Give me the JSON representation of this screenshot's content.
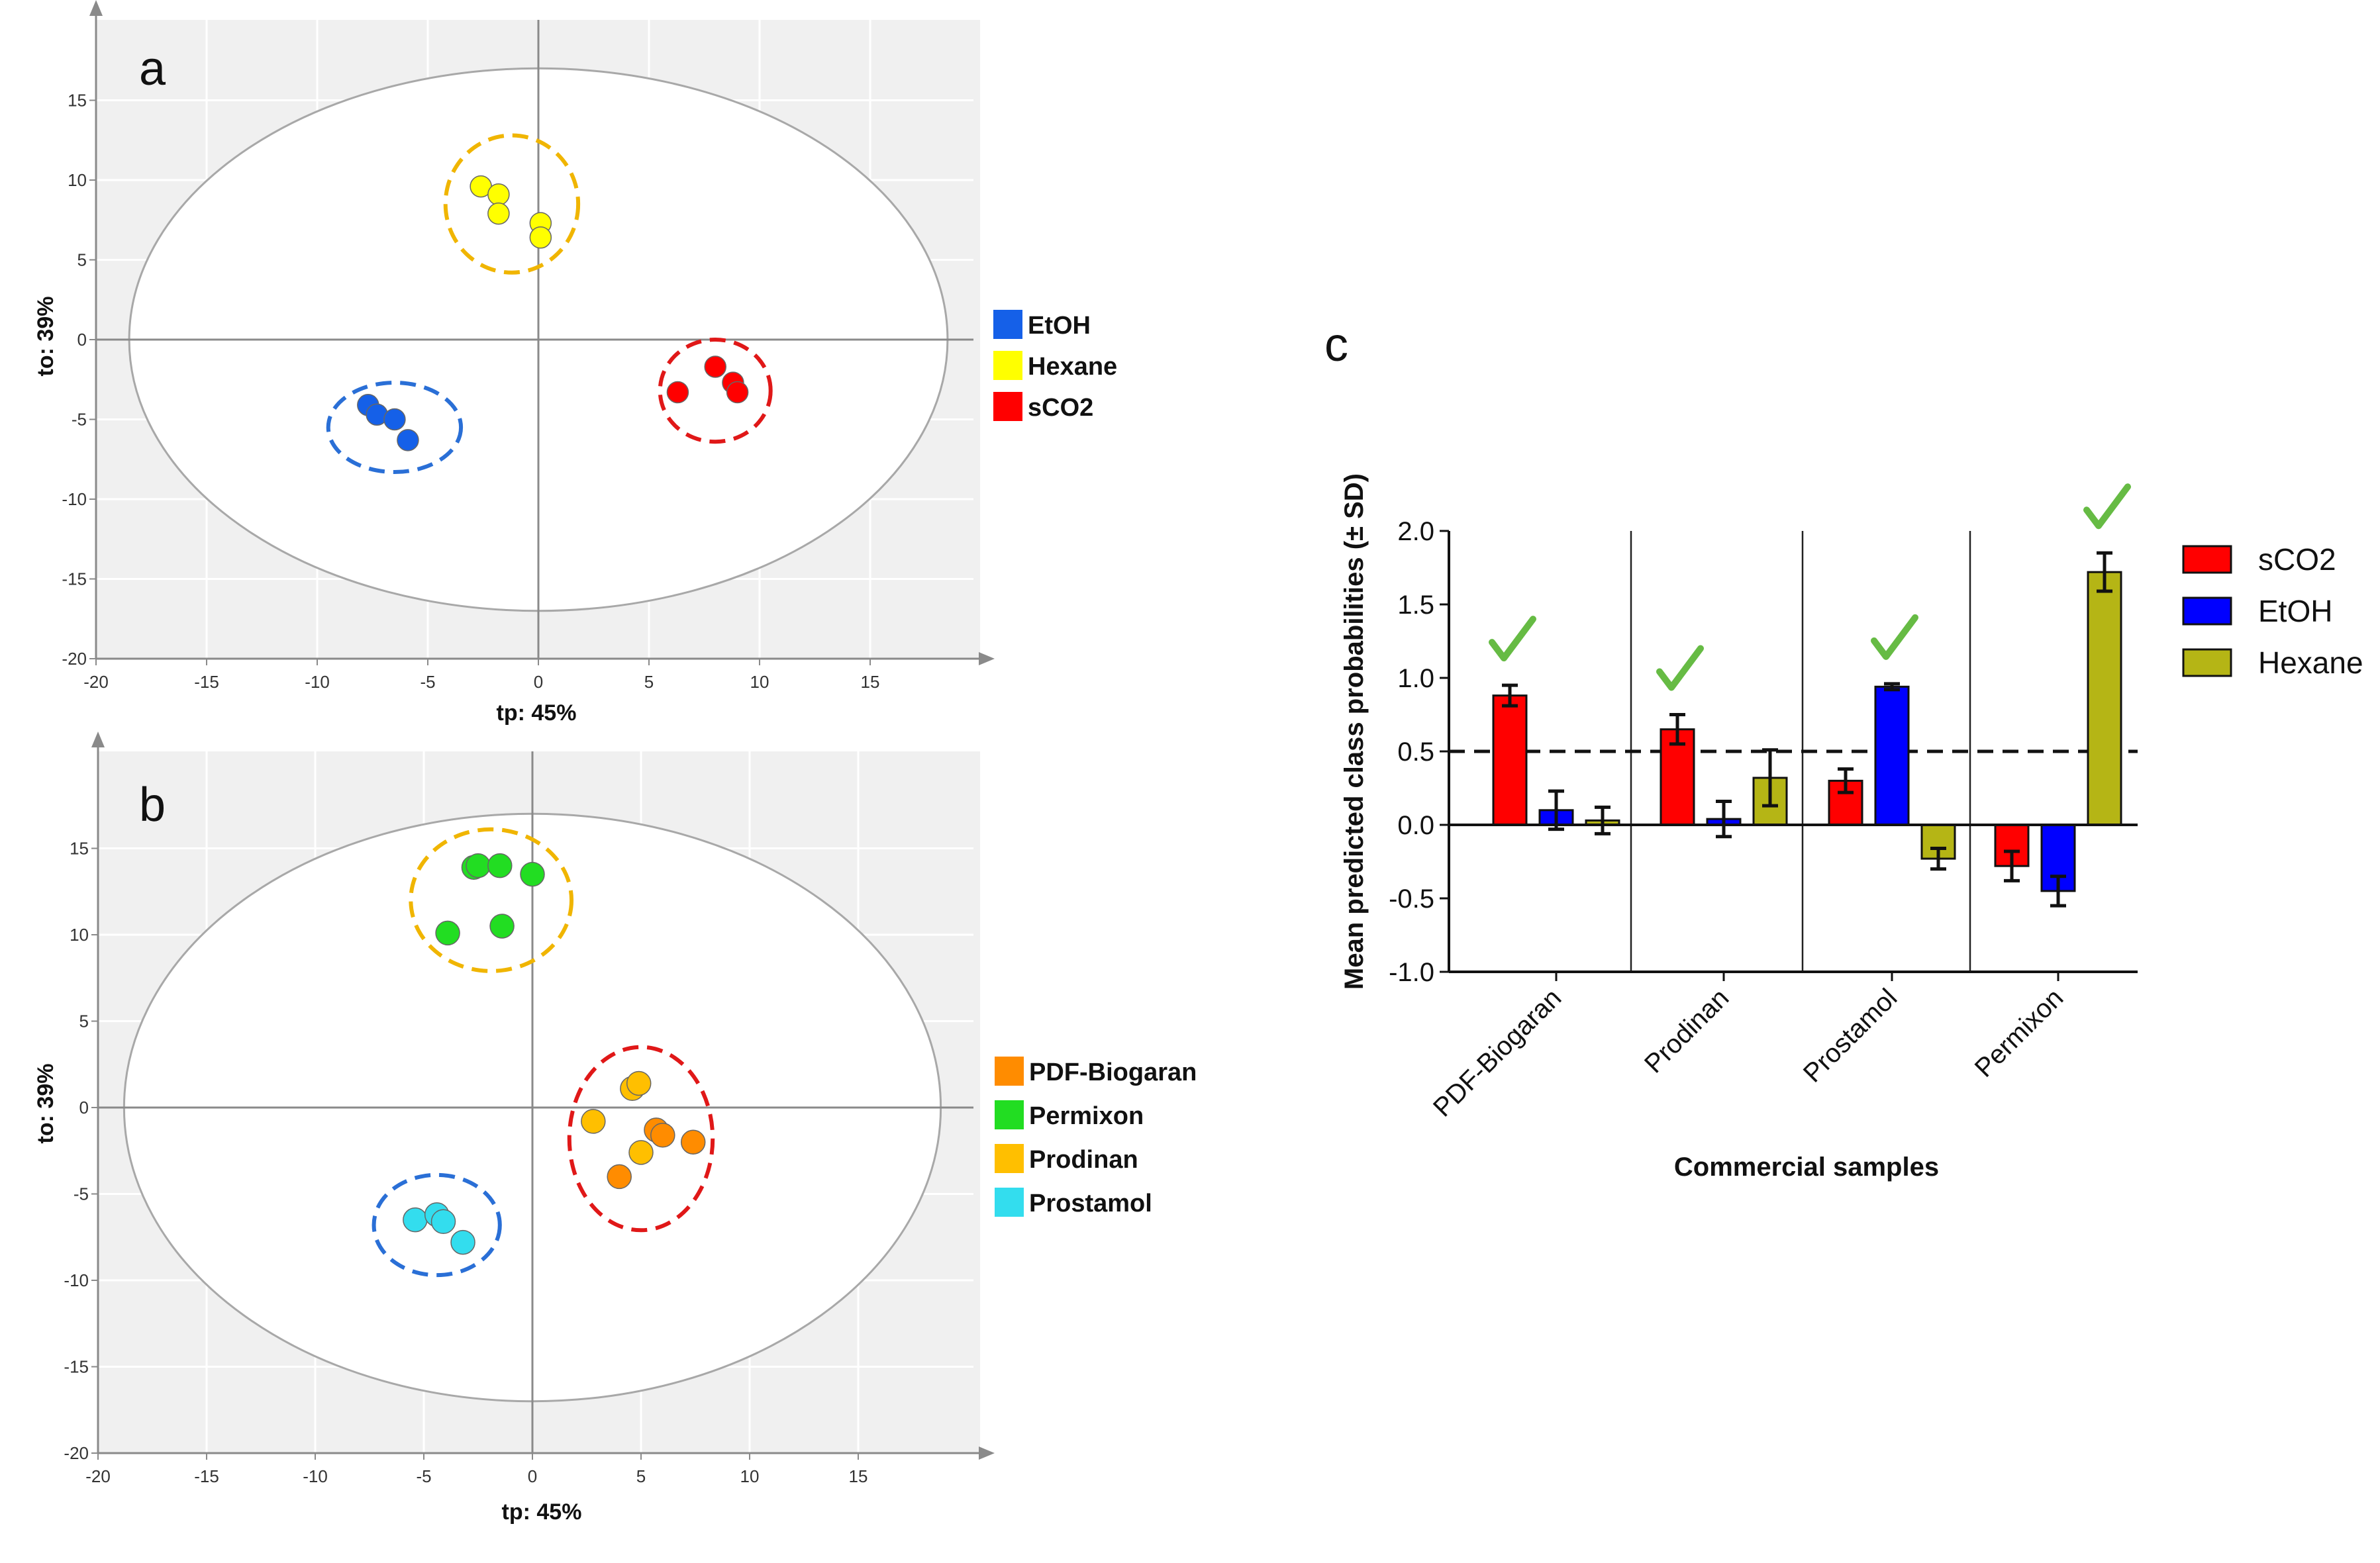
{
  "chart_data": [
    {
      "id": "a",
      "type": "scatter",
      "panel_label": "a",
      "xlabel": "tp: 45%",
      "ylabel": "to: 39%",
      "xlim": [
        -20,
        19.5
      ],
      "ylim": [
        -20,
        19.5
      ],
      "xticks": [
        -20,
        -15,
        -10,
        -5,
        0,
        5,
        10,
        15
      ],
      "yticks": [
        -20,
        -15,
        -10,
        -5,
        0,
        5,
        10,
        15
      ],
      "ellipse": {
        "cx": 0,
        "cy": 0,
        "rx": 18.5,
        "ry": 17
      },
      "clusters": [
        {
          "cx": -6.5,
          "cy": -5.5,
          "rx": 3.0,
          "ry": 2.8,
          "color": "#2a6fd6"
        },
        {
          "cx": -1.2,
          "cy": 8.5,
          "rx": 3.0,
          "ry": 4.3,
          "color": "#f0b500"
        },
        {
          "cx": 8.0,
          "cy": -3.2,
          "rx": 2.5,
          "ry": 3.2,
          "color": "#e01818"
        }
      ],
      "series": [
        {
          "name": "EtOH",
          "color": "#1560e8",
          "points": [
            [
              -7.7,
              -4.1
            ],
            [
              -7.3,
              -4.7
            ],
            [
              -6.5,
              -5.0
            ],
            [
              -5.9,
              -6.3
            ]
          ]
        },
        {
          "name": "Hexane",
          "color": "#ffff00",
          "points": [
            [
              -2.6,
              9.6
            ],
            [
              -1.8,
              9.1
            ],
            [
              -1.8,
              7.9
            ],
            [
              0.1,
              7.3
            ],
            [
              0.1,
              6.4
            ]
          ]
        },
        {
          "name": "sCO2",
          "color": "#ff0000",
          "points": [
            [
              6.3,
              -3.3
            ],
            [
              8.0,
              -1.7
            ],
            [
              8.8,
              -2.7
            ],
            [
              9.0,
              -3.3
            ]
          ]
        }
      ],
      "legend": [
        "EtOH",
        "Hexane",
        "sCO2"
      ]
    },
    {
      "id": "b",
      "type": "scatter",
      "panel_label": "b",
      "xlabel": "tp: 45%",
      "ylabel": "to: 39%",
      "xlim": [
        -20,
        19.5
      ],
      "ylim": [
        -20,
        19.5
      ],
      "xticks": [
        -20,
        -15,
        -10,
        -5,
        0,
        5,
        10,
        15
      ],
      "yticks": [
        -20,
        -15,
        -10,
        -5,
        0,
        5,
        10,
        15
      ],
      "ellipse": {
        "cx": 0,
        "cy": 0,
        "rx": 18.8,
        "ry": 17
      },
      "clusters": [
        {
          "cx": -1.9,
          "cy": 12.0,
          "rx": 3.7,
          "ry": 4.1,
          "color": "#f0b500"
        },
        {
          "cx": 5.0,
          "cy": -1.8,
          "rx": 3.3,
          "ry": 5.3,
          "color": "#e01818"
        },
        {
          "cx": -4.4,
          "cy": -6.8,
          "rx": 2.9,
          "ry": 2.9,
          "color": "#2a6fd6"
        }
      ],
      "series": [
        {
          "name": "PDF-Biogaran",
          "color": "#ff8c00",
          "points": [
            [
              5.7,
              -1.3
            ],
            [
              6.0,
              -1.6
            ],
            [
              7.4,
              -2.0
            ],
            [
              4.0,
              -4.0
            ]
          ]
        },
        {
          "name": "Permixon",
          "color": "#22dd22",
          "points": [
            [
              -2.7,
              13.9
            ],
            [
              -2.5,
              14.0
            ],
            [
              -1.5,
              14.0
            ],
            [
              0.0,
              13.5
            ],
            [
              -3.9,
              10.1
            ],
            [
              -1.4,
              10.5
            ]
          ]
        },
        {
          "name": "Prodinan",
          "color": "#ffbf00",
          "points": [
            [
              4.6,
              1.1
            ],
            [
              4.9,
              1.4
            ],
            [
              2.8,
              -0.8
            ],
            [
              5.0,
              -2.6
            ]
          ]
        },
        {
          "name": "Prostamol",
          "color": "#33ddee",
          "points": [
            [
              -5.4,
              -6.5
            ],
            [
              -4.4,
              -6.2
            ],
            [
              -4.1,
              -6.6
            ],
            [
              -3.2,
              -7.8
            ]
          ]
        }
      ],
      "legend": [
        "PDF-Biogaran",
        "Permixon",
        "Prodinan",
        "Prostamol"
      ]
    },
    {
      "id": "c",
      "type": "bar",
      "panel_label": "c",
      "xlabel": "Commercial samples",
      "ylabel": "Mean predicted class probabilities (± SD)",
      "ylim": [
        -1.0,
        2.0
      ],
      "yticks": [
        "-1.0",
        "-0.5",
        "0.0",
        "0.5",
        "1.0",
        "1.5",
        "2.0"
      ],
      "threshold": 0.5,
      "categories": [
        "PDF-Biogaran",
        "Prodinan",
        "Prostamol",
        "Permixon"
      ],
      "series": [
        {
          "name": "sCO2",
          "color": "#ff0000",
          "values": [
            0.88,
            0.65,
            0.3,
            -0.28
          ],
          "sd": [
            0.07,
            0.1,
            0.08,
            0.1
          ]
        },
        {
          "name": "EtOH",
          "color": "#0000ff",
          "values": [
            0.1,
            0.04,
            0.94,
            -0.45
          ],
          "sd": [
            0.13,
            0.12,
            0.02,
            0.1
          ]
        },
        {
          "name": "Hexane",
          "color": "#b5b515",
          "values": [
            0.03,
            0.32,
            -0.23,
            1.72
          ],
          "sd": [
            0.09,
            0.19,
            0.07,
            0.13
          ]
        }
      ],
      "checkmarks": [
        "sCO2",
        "sCO2",
        "EtOH",
        "Hexane"
      ],
      "check_color": "#66bb44",
      "legend": [
        "sCO2",
        "EtOH",
        "Hexane"
      ]
    }
  ]
}
